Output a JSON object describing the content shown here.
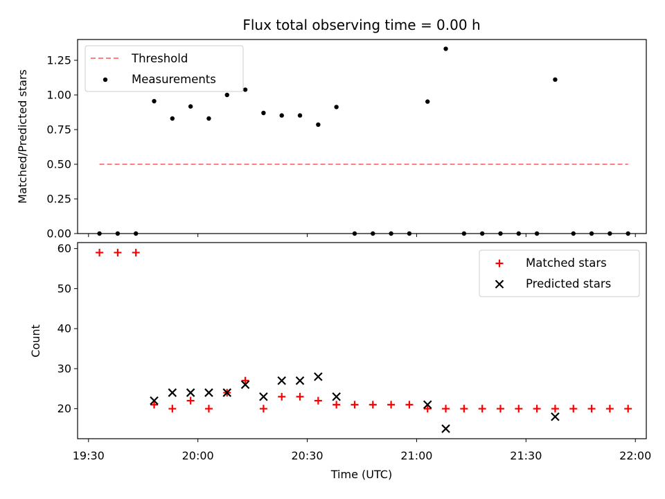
{
  "chart_data": [
    {
      "type": "scatter",
      "title": "Flux total observing time = 0.00 h",
      "xlabel": "",
      "ylabel": "Matched/Predicted stars",
      "ylim": [
        0,
        1.4
      ],
      "yticks": [
        "0.00",
        "0.25",
        "0.50",
        "0.75",
        "1.00",
        "1.25"
      ],
      "legend_position": "top-left",
      "x": [
        "19:33",
        "19:38",
        "19:43",
        "19:48",
        "19:53",
        "19:58",
        "20:03",
        "20:08",
        "20:13",
        "20:18",
        "20:23",
        "20:28",
        "20:33",
        "20:38",
        "20:43",
        "20:48",
        "20:53",
        "20:58",
        "21:03",
        "21:08",
        "21:13",
        "21:18",
        "21:23",
        "21:28",
        "21:33",
        "21:38",
        "21:43",
        "21:48",
        "21:53",
        "21:58"
      ],
      "series": [
        {
          "name": "Threshold",
          "style": "dashed-line",
          "color": "#ff7f7f",
          "x": [
            "19:33",
            "21:58"
          ],
          "values": [
            0.5,
            0.5
          ]
        },
        {
          "name": "Measurements",
          "style": "dot",
          "color": "#000000",
          "values": [
            0,
            0,
            0,
            0.955,
            0.83,
            0.917,
            0.83,
            1.0,
            1.038,
            0.87,
            0.852,
            0.852,
            0.786,
            0.913,
            0,
            0,
            0,
            0,
            0.952,
            1.333,
            0,
            0,
            0,
            0,
            0,
            1.111,
            0,
            0,
            0,
            0
          ]
        }
      ]
    },
    {
      "type": "scatter",
      "title": "",
      "xlabel": "Time (UTC)",
      "ylabel": "Count",
      "xlim": [
        "19:27",
        "22:03"
      ],
      "xticks": [
        "19:30",
        "20:00",
        "20:30",
        "21:00",
        "21:30",
        "22:00"
      ],
      "ylim": [
        12.5,
        61.5
      ],
      "yticks": [
        "20",
        "30",
        "40",
        "50",
        "60"
      ],
      "legend_position": "top-right",
      "x": [
        "19:33",
        "19:38",
        "19:43",
        "19:48",
        "19:53",
        "19:58",
        "20:03",
        "20:08",
        "20:13",
        "20:18",
        "20:23",
        "20:28",
        "20:33",
        "20:38",
        "20:43",
        "20:48",
        "20:53",
        "20:58",
        "21:03",
        "21:08",
        "21:13",
        "21:18",
        "21:23",
        "21:28",
        "21:33",
        "21:38",
        "21:43",
        "21:48",
        "21:53",
        "21:58"
      ],
      "series": [
        {
          "name": "Matched stars",
          "marker": "plus",
          "color": "#ff0000",
          "values": [
            59,
            59,
            59,
            21,
            20,
            22,
            20,
            24,
            27,
            20,
            23,
            23,
            22,
            21,
            21,
            21,
            21,
            21,
            20,
            20,
            20,
            20,
            20,
            20,
            20,
            20,
            20,
            20,
            20,
            20
          ]
        },
        {
          "name": "Predicted stars",
          "marker": "x",
          "color": "#000000",
          "values": [
            null,
            null,
            null,
            22,
            24,
            24,
            24,
            24,
            26,
            23,
            27,
            27,
            28,
            23,
            null,
            null,
            null,
            null,
            21,
            15,
            null,
            null,
            null,
            null,
            null,
            18,
            null,
            null,
            null,
            null
          ]
        }
      ]
    }
  ]
}
